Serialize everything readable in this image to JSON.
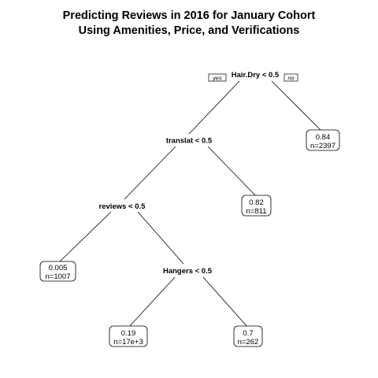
{
  "title": {
    "line1": "Predicting Reviews in 2016 for January Cohort",
    "line2": "Using Amenities, Price, and Verifications"
  },
  "tree": {
    "root": {
      "split": "Hair.Dry < 0.5",
      "yes_label": "yes",
      "no_label": "no"
    },
    "split_translat": "translat < 0.5",
    "split_reviews": "reviews < 0.5",
    "split_hangers": "Hangers < 0.5",
    "leaves": [
      {
        "value": "0.005",
        "n": "n=1007"
      },
      {
        "value": "0.19",
        "n": "n=17e+3"
      },
      {
        "value": "0.7",
        "n": "n=262"
      },
      {
        "value": "0.82",
        "n": "n=811"
      },
      {
        "value": "0.84",
        "n": "n=2397"
      }
    ]
  }
}
